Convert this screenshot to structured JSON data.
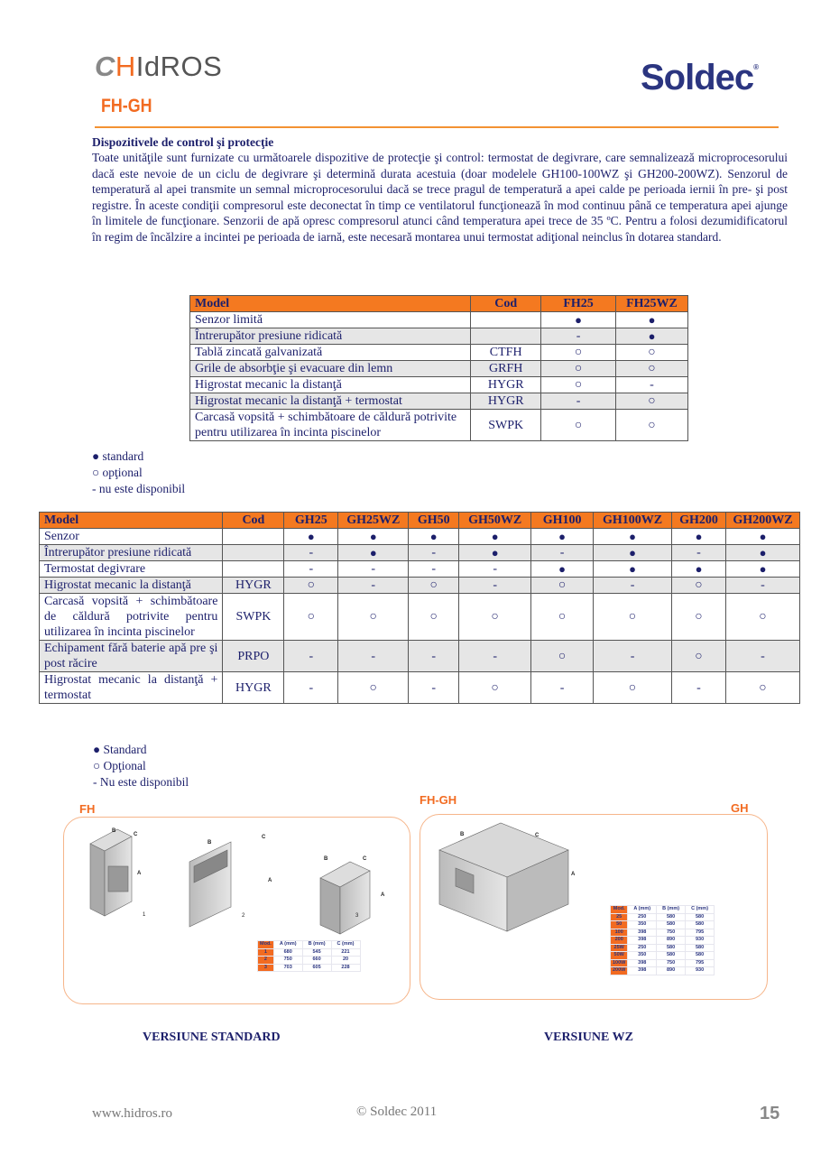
{
  "header": {
    "brand_logo": "HIdROS",
    "product_code": "FH-GH",
    "partner_logo": "Soldec",
    "accent_color": "#f26b21",
    "text_color": "#1c1f6b"
  },
  "section": {
    "heading": "Dispozitivele de control şi protecţie",
    "body": "Toate unităţile sunt furnizate cu următoarele dispozitive de protecţie şi control: termostat de degivrare,  care semnalizează microprocesorului dacă este nevoie de un ciclu de degivrare şi determină durata acestuia (doar modelele GH100-100WZ şi GH200-200WZ). Senzorul de temperatură al apei transmite un semnal microprocesorului dacă se trece pragul de temperatură a apei calde pe perioada iernii în pre- şi post registre. În aceste condiţii compresorul este deconectat în timp ce ventilatorul funcţionează în mod continuu până ce temperatura apei ajunge în limitele de funcţionare. Senzorii de apă opresc compresorul atunci când temperatura apei trece de 35 ºC. Pentru a folosi dezumidificatorul în regim de încălzire a incintei pe perioada de iarnă, este necesară montarea unui termostat adiţional neinclus în dotarea standard."
  },
  "table_fh": {
    "headers": [
      "Model",
      "Cod",
      "FH25",
      "FH25WZ"
    ],
    "rows": [
      [
        "Senzor limită",
        "",
        "●",
        "●"
      ],
      [
        "Întrerupător presiune ridicată",
        "",
        "-",
        "●"
      ],
      [
        "Tablă zincată galvanizată",
        "CTFH",
        "○",
        "○"
      ],
      [
        "Grile de absorbţie şi evacuare din lemn",
        "GRFH",
        "○",
        "○"
      ],
      [
        "Higrostat mecanic la distanţă",
        "HYGR",
        "○",
        "-"
      ],
      [
        "Higrostat mecanic la distanţă + termostat",
        "HYGR",
        "-",
        "○"
      ],
      [
        "Carcasă vopsită + schimbătoare de căldură potrivite pentru utilizarea în incinta piscinelor",
        "SWPK",
        "○",
        "○"
      ]
    ]
  },
  "legend_1": [
    "● standard",
    "○ opţional",
    "- nu este disponibil"
  ],
  "table_gh": {
    "headers": [
      "Model",
      "Cod",
      "GH25",
      "GH25WZ",
      "GH50",
      "GH50WZ",
      "GH100",
      "GH100WZ",
      "GH200",
      "GH200WZ"
    ],
    "rows": [
      [
        "Senzor",
        "",
        "●",
        "●",
        "●",
        "●",
        "●",
        "●",
        "●",
        "●"
      ],
      [
        "Întrerupător presiune ridicată",
        "",
        "-",
        "●",
        "-",
        "●",
        "-",
        "●",
        "-",
        "●"
      ],
      [
        "Termostat degivrare",
        "",
        "-",
        "-",
        "-",
        "-",
        "●",
        "●",
        "●",
        "●"
      ],
      [
        "Higrostat mecanic la distanţă",
        "HYGR",
        "○",
        "-",
        "○",
        "-",
        "○",
        "-",
        "○",
        "-"
      ],
      [
        "Carcasă vopsită + schimbătoare de căldură potrivite pentru utilizarea în incinta piscinelor",
        "SWPK",
        "○",
        "○",
        "○",
        "○",
        "○",
        "○",
        "○",
        "○"
      ],
      [
        "Echipament fără baterie apă pre şi post răcire",
        "PRPO",
        "-",
        "-",
        "-",
        "-",
        "○",
        "-",
        "○",
        "-"
      ],
      [
        "Higrostat mecanic la distanţă + termostat",
        "HYGR",
        "-",
        "○",
        "-",
        "○",
        "-",
        "○",
        "-",
        "○"
      ]
    ]
  },
  "legend_2": [
    "● Standard",
    "○ Opţional",
    "- Nu este disponibil"
  ],
  "drawings": {
    "center_label": "FH-GH",
    "fh": {
      "label": "FH",
      "unit_numbers": [
        "1",
        "2",
        "3"
      ],
      "dim_labels": [
        "A",
        "B",
        "C"
      ],
      "dims": {
        "headers": [
          "Mod.",
          "A (mm)",
          "B (mm)",
          "C (mm)"
        ],
        "rows": [
          [
            "1",
            "680",
            "545",
            "221"
          ],
          [
            "2",
            "750",
            "660",
            "20"
          ],
          [
            "3",
            "703",
            "605",
            "228"
          ]
        ]
      },
      "caption": "VERSIUNE STANDARD"
    },
    "gh": {
      "label": "GH",
      "dims": {
        "headers": [
          "Mod.",
          "A (mm)",
          "B (mm)",
          "C (mm)"
        ],
        "rows": [
          [
            "25",
            "250",
            "580",
            "580"
          ],
          [
            "50",
            "350",
            "580",
            "580"
          ],
          [
            "100",
            "398",
            "750",
            "795"
          ],
          [
            "200",
            "398",
            "890",
            "930"
          ],
          [
            "25W",
            "250",
            "580",
            "580"
          ],
          [
            "50W",
            "350",
            "580",
            "580"
          ],
          [
            "100W",
            "398",
            "750",
            "795"
          ],
          [
            "200W",
            "398",
            "890",
            "930"
          ]
        ]
      },
      "caption": "VERSIUNE WZ"
    }
  },
  "footer": {
    "website": "www.hidros.ro",
    "copyright": "© Soldec 2011",
    "page_number": "15"
  }
}
